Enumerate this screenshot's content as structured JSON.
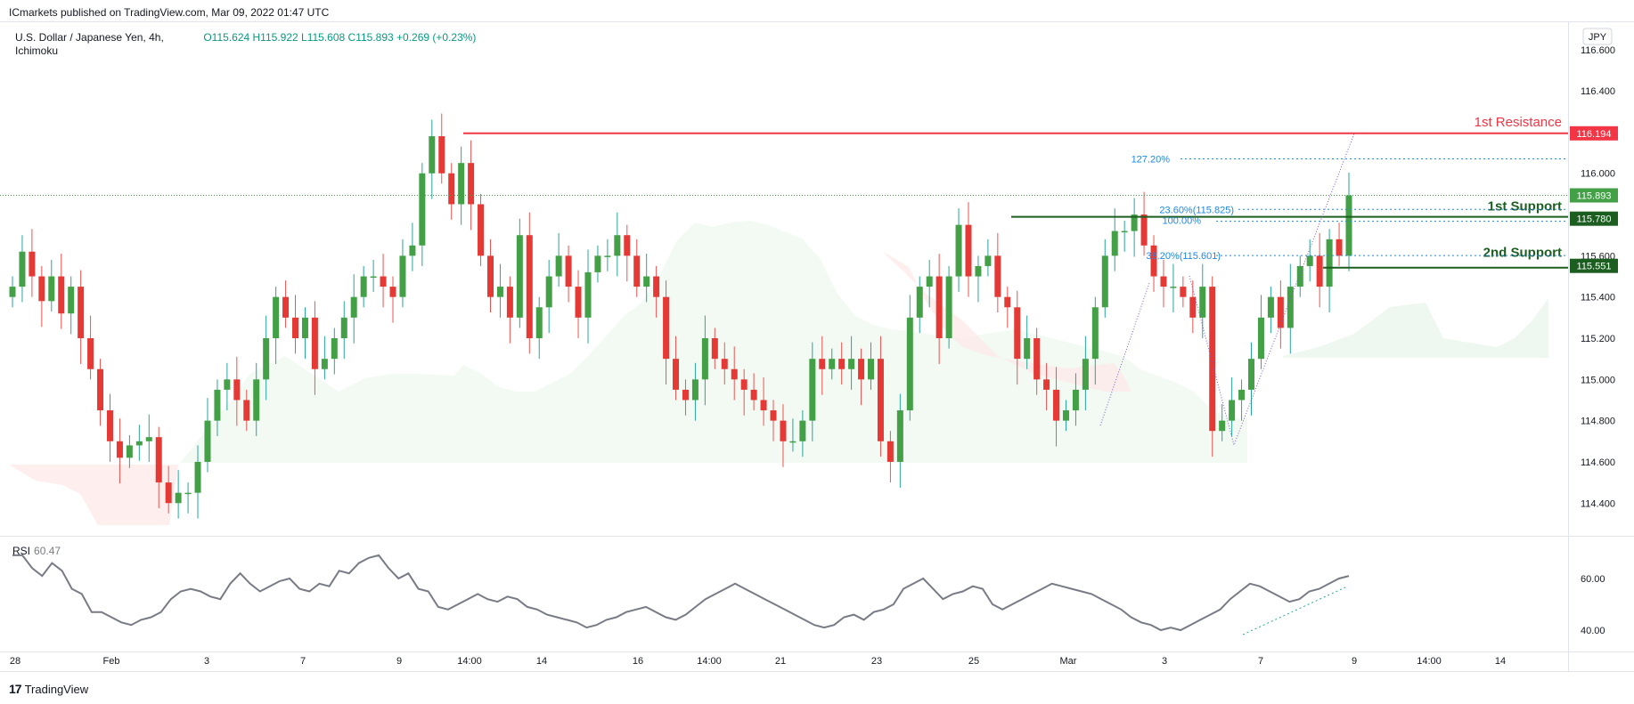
{
  "header": {
    "published": "ICmarkets published on TradingView.com, Mar 09, 2022 01:47 UTC",
    "symbol": "U.S. Dollar / Japanese Yen, 4h,",
    "indicator": "Ichimoku",
    "ohlc": {
      "open": "O115.624",
      "high": "H115.922",
      "low": "L115.608",
      "close": "C115.893",
      "change": "+0.269 (+0.23%)"
    }
  },
  "currency": "JPY",
  "brand": "TradingView",
  "chart_data": {
    "type": "candlestick",
    "timeframe": "4h",
    "y_axis": {
      "ticks": [
        "116.600",
        "116.400",
        "116.000",
        "115.600",
        "115.400",
        "115.200",
        "115.000",
        "114.800",
        "114.600",
        "114.400"
      ],
      "range": [
        114.25,
        116.72
      ]
    },
    "x_axis": {
      "labels": [
        "28",
        "Feb",
        "3",
        "7",
        "9",
        "14:00",
        "14",
        "16",
        "14:00",
        "21",
        "23",
        "25",
        "Mar",
        "3",
        "7",
        "9",
        "14:00",
        "14"
      ]
    },
    "price_labels": {
      "resistance": "116.194",
      "last": "115.893",
      "support1": "115.780",
      "support2": "115.551"
    },
    "levels": [
      {
        "name": "1st Resistance",
        "value": 116.194,
        "color": "#f23645"
      },
      {
        "name": "1st Support",
        "value": 115.78,
        "color": "#1b5e20"
      },
      {
        "name": "2nd Support",
        "value": 115.551,
        "color": "#1b5e20"
      }
    ],
    "fib_labels": {
      "ext": "127.20%",
      "f236": "23.60%(115.825)",
      "f100": "100.00%",
      "f382": "38.20%(115.601)"
    },
    "closes": [
      115.45,
      115.62,
      115.5,
      115.38,
      115.5,
      115.32,
      115.45,
      115.2,
      115.05,
      114.85,
      114.7,
      114.62,
      114.68,
      114.7,
      114.72,
      114.5,
      114.4,
      114.45,
      114.45,
      114.6,
      114.8,
      114.95,
      115.0,
      114.9,
      114.8,
      115.0,
      115.2,
      115.4,
      115.3,
      115.2,
      115.3,
      115.05,
      115.1,
      115.2,
      115.3,
      115.4,
      115.5,
      115.5,
      115.45,
      115.4,
      115.6,
      115.65,
      116.0,
      116.18,
      116.0,
      115.85,
      116.05,
      115.85,
      115.6,
      115.4,
      115.45,
      115.3,
      115.7,
      115.2,
      115.35,
      115.5,
      115.6,
      115.45,
      115.3,
      115.52,
      115.6,
      115.6,
      115.7,
      115.6,
      115.45,
      115.5,
      115.4,
      115.1,
      114.95,
      114.9,
      115.0,
      115.2,
      115.1,
      115.05,
      115.0,
      114.95,
      114.9,
      114.85,
      114.8,
      114.7,
      114.7,
      114.8,
      115.1,
      115.05,
      115.1,
      115.05,
      115.1,
      115.0,
      115.1,
      114.7,
      114.6,
      114.85,
      115.3,
      115.45,
      115.5,
      115.2,
      115.5,
      115.75,
      115.5,
      115.55,
      115.6,
      115.4,
      115.35,
      115.1,
      115.2,
      115.0,
      114.95,
      114.8,
      114.85,
      114.95,
      115.1,
      115.35,
      115.6,
      115.72,
      115.72,
      115.8,
      115.65,
      115.5,
      115.45,
      115.45,
      115.4,
      115.3,
      115.45,
      114.75,
      114.8,
      114.9,
      114.95,
      115.1,
      115.3,
      115.4,
      115.25,
      115.45,
      115.55,
      115.6,
      115.45,
      115.68,
      115.6,
      115.893
    ],
    "rsi": {
      "label": "RSI",
      "value": "60.47",
      "ticks": [
        "60.00",
        "40.00"
      ],
      "values": [
        69,
        69,
        64,
        61,
        66,
        63,
        56,
        54,
        47,
        47,
        45,
        43,
        42,
        44,
        45,
        47,
        52,
        55,
        56,
        55,
        53,
        52,
        58,
        62,
        58,
        55,
        57,
        59,
        60,
        56,
        55,
        58,
        57,
        63,
        62,
        66,
        68,
        69,
        64,
        60,
        62,
        56,
        55,
        49,
        48,
        50,
        52,
        54,
        52,
        51,
        53,
        52,
        49,
        48,
        46,
        45,
        44,
        43,
        41,
        42,
        44,
        45,
        47,
        48,
        49,
        47,
        45,
        44,
        46,
        49,
        52,
        54,
        56,
        58,
        56,
        54,
        52,
        50,
        48,
        46,
        44,
        42,
        41,
        42,
        45,
        46,
        44,
        47,
        48,
        50,
        56,
        58,
        60,
        56,
        52,
        54,
        55,
        57,
        56,
        50,
        48,
        50,
        52,
        54,
        56,
        58,
        57,
        56,
        55,
        54,
        52,
        50,
        48,
        45,
        43,
        42,
        40,
        41,
        40,
        42,
        44,
        46,
        48,
        52,
        55,
        58,
        57,
        55,
        53,
        51,
        52,
        55,
        56,
        58,
        60,
        61
      ]
    }
  }
}
